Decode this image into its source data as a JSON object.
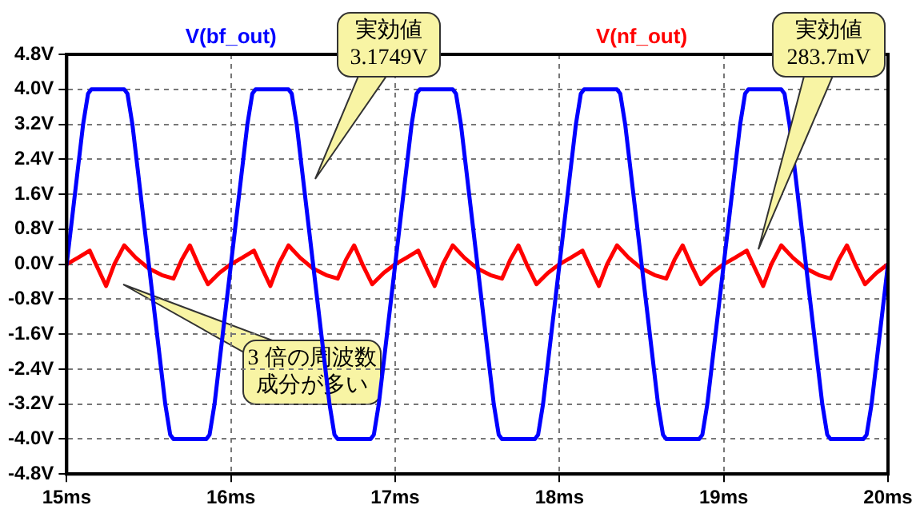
{
  "chart_data": {
    "type": "line",
    "xlim": [
      15,
      20
    ],
    "xticks": [
      {
        "value": 15,
        "label": "15ms"
      },
      {
        "value": 16,
        "label": "16ms"
      },
      {
        "value": 17,
        "label": "17ms"
      },
      {
        "value": 18,
        "label": "18ms"
      },
      {
        "value": 19,
        "label": "19ms"
      },
      {
        "value": 20,
        "label": "20ms"
      }
    ],
    "ylim": [
      -4.8,
      4.8
    ],
    "yticks": [
      {
        "value": -4.8,
        "label": "-4.8V"
      },
      {
        "value": -4.0,
        "label": "-4.0V"
      },
      {
        "value": -3.2,
        "label": "-3.2V"
      },
      {
        "value": -2.4,
        "label": "-2.4V"
      },
      {
        "value": -1.6,
        "label": "-1.6V"
      },
      {
        "value": -0.8,
        "label": "-0.8V"
      },
      {
        "value": 0,
        "label": "0.0V"
      },
      {
        "value": 0.8,
        "label": "0.8V"
      },
      {
        "value": 1.6,
        "label": "1.6V"
      },
      {
        "value": 2.4,
        "label": "2.4V"
      },
      {
        "value": 3.2,
        "label": "3.2V"
      },
      {
        "value": 4.0,
        "label": "4.0V"
      },
      {
        "value": 4.8,
        "label": "4.8V"
      }
    ],
    "grid": true,
    "legend": "top",
    "marker": "none",
    "line_style": "solid",
    "series": [
      {
        "name": "V(bf_out)",
        "color": "#0000ff",
        "x": [
          15,
          15.05,
          15.1,
          15.13,
          15.15,
          15.35,
          15.37,
          15.4,
          15.45,
          15.5,
          15.55,
          15.6,
          15.63,
          15.65,
          15.85,
          15.87,
          15.9,
          15.95,
          16,
          16.05,
          16.1,
          16.13,
          16.15,
          16.35,
          16.37,
          16.4,
          16.45,
          16.5,
          16.55,
          16.6,
          16.63,
          16.65,
          16.85,
          16.87,
          16.9,
          16.95,
          17,
          17.05,
          17.1,
          17.13,
          17.15,
          17.35,
          17.37,
          17.4,
          17.45,
          17.5,
          17.55,
          17.6,
          17.63,
          17.65,
          17.85,
          17.87,
          17.9,
          17.95,
          18,
          18.05,
          18.1,
          18.13,
          18.15,
          18.35,
          18.37,
          18.4,
          18.45,
          18.5,
          18.55,
          18.6,
          18.63,
          18.65,
          18.85,
          18.87,
          18.9,
          18.95,
          19,
          19.05,
          19.1,
          19.13,
          19.15,
          19.35,
          19.37,
          19.4,
          19.45,
          19.5,
          19.55,
          19.6,
          19.63,
          19.65,
          19.85,
          19.87,
          19.9,
          19.95,
          20
        ],
        "values": [
          0,
          1.6,
          3.2,
          3.9,
          4.0,
          4.0,
          3.9,
          3.2,
          1.6,
          0,
          -1.6,
          -3.2,
          -3.9,
          -4.0,
          -4.0,
          -3.9,
          -3.2,
          -1.6,
          0,
          1.6,
          3.2,
          3.9,
          4.0,
          4.0,
          3.9,
          3.2,
          1.6,
          0,
          -1.6,
          -3.2,
          -3.9,
          -4.0,
          -4.0,
          -3.9,
          -3.2,
          -1.6,
          0,
          1.6,
          3.2,
          3.9,
          4.0,
          4.0,
          3.9,
          3.2,
          1.6,
          0,
          -1.6,
          -3.2,
          -3.9,
          -4.0,
          -4.0,
          -3.9,
          -3.2,
          -1.6,
          0,
          1.6,
          3.2,
          3.9,
          4.0,
          4.0,
          3.9,
          3.2,
          1.6,
          0,
          -1.6,
          -3.2,
          -3.9,
          -4.0,
          -4.0,
          -3.9,
          -3.2,
          -1.6,
          0,
          1.6,
          3.2,
          3.9,
          4.0,
          4.0,
          3.9,
          3.2,
          1.6,
          0,
          -1.6,
          -3.2,
          -3.9,
          -4.0,
          -4.0,
          -3.9,
          -3.2,
          -1.6,
          0
        ]
      },
      {
        "name": "V(nf_out)",
        "color": "#ff0000",
        "x": [
          15,
          15.07,
          15.14,
          15.19,
          15.24,
          15.29,
          15.35,
          15.42,
          15.5,
          15.58,
          15.65,
          15.7,
          15.75,
          15.8,
          15.86,
          15.93,
          16,
          16.07,
          16.14,
          16.19,
          16.24,
          16.29,
          16.35,
          16.42,
          16.5,
          16.58,
          16.65,
          16.7,
          16.75,
          16.8,
          16.86,
          16.93,
          17,
          17.07,
          17.14,
          17.19,
          17.24,
          17.29,
          17.35,
          17.42,
          17.5,
          17.58,
          17.65,
          17.7,
          17.75,
          17.8,
          17.86,
          17.93,
          18,
          18.07,
          18.14,
          18.19,
          18.24,
          18.29,
          18.35,
          18.42,
          18.5,
          18.58,
          18.65,
          18.7,
          18.75,
          18.8,
          18.86,
          18.93,
          19,
          19.07,
          19.14,
          19.19,
          19.24,
          19.29,
          19.35,
          19.42,
          19.5,
          19.58,
          19.65,
          19.7,
          19.75,
          19.8,
          19.86,
          19.93,
          20
        ],
        "values": [
          0,
          0.15,
          0.31,
          -0.1,
          -0.5,
          0,
          0.43,
          0.15,
          -0.1,
          -0.25,
          -0.33,
          0.1,
          0.43,
          0,
          -0.46,
          -0.2,
          0,
          0.15,
          0.31,
          -0.1,
          -0.5,
          0,
          0.43,
          0.15,
          -0.1,
          -0.25,
          -0.33,
          0.1,
          0.43,
          0,
          -0.46,
          -0.2,
          0,
          0.15,
          0.31,
          -0.1,
          -0.5,
          0,
          0.43,
          0.15,
          -0.1,
          -0.25,
          -0.33,
          0.1,
          0.43,
          0,
          -0.46,
          -0.2,
          0,
          0.15,
          0.31,
          -0.1,
          -0.5,
          0,
          0.43,
          0.15,
          -0.1,
          -0.25,
          -0.33,
          0.1,
          0.43,
          0,
          -0.46,
          -0.2,
          0,
          0.15,
          0.31,
          -0.1,
          -0.5,
          0,
          0.43,
          0.15,
          -0.1,
          -0.25,
          -0.33,
          0.1,
          0.43,
          0,
          -0.46,
          -0.2,
          0
        ]
      }
    ],
    "annotations": [
      "実効値\n3.1749V",
      "実効値\n283.7mV",
      "3 倍の周波数成分が多い"
    ]
  }
}
